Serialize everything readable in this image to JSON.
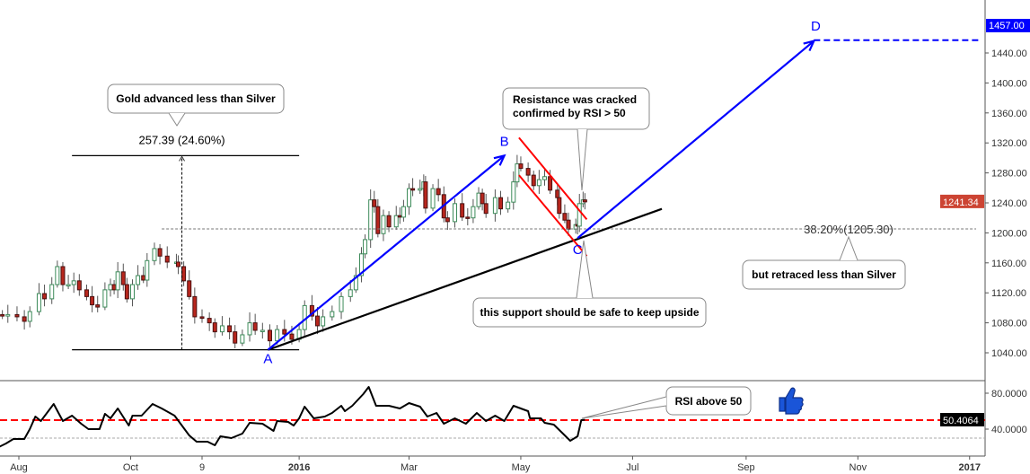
{
  "chart_data": [
    {
      "type": "candlestick",
      "title": "",
      "price_axis": {
        "ticks": [
          1040,
          1080,
          1120,
          1160,
          1200,
          1240,
          1280,
          1320,
          1360,
          1400,
          1440
        ],
        "tick_labels": [
          "1040.00",
          "1080.00",
          "1120.00",
          "1160.00",
          "1200.00",
          "1240.00",
          "1280.00",
          "1320.00",
          "1360.00",
          "1400.00",
          "1440.00"
        ],
        "range": [
          1008,
          1476
        ]
      },
      "time_axis": {
        "labels": [
          "Aug",
          "Oct",
          "9",
          "2016",
          "Mar",
          "May",
          "Jul",
          "Sep",
          "Nov",
          "2017"
        ],
        "dates": [
          "2015-08-01",
          "2015-10-01",
          "2015-11-09",
          "2016-01-01",
          "2016-03-01",
          "2016-05-01",
          "2016-07-01",
          "2016-09-01",
          "2016-11-01",
          "2017-01-01"
        ],
        "bold": [
          "2016",
          "2017"
        ]
      },
      "colors": {
        "up": "#3d8b5a",
        "down": "#b8261d",
        "wave": "#0000ff",
        "channel": "#ff0000",
        "trend": "#000000",
        "last_price": "#cc4433",
        "target": "#0000ff"
      },
      "last_price_label": "1241.34",
      "target_label": "1457.00",
      "target_price": 1457,
      "closes": [
        [
          "2015-07-23",
          1089
        ],
        [
          "2015-07-26",
          1091
        ],
        [
          "2015-07-31",
          1088
        ],
        [
          "2015-08-04",
          1082
        ],
        [
          "2015-08-07",
          1095
        ],
        [
          "2015-08-12",
          1119
        ],
        [
          "2015-08-15",
          1112
        ],
        [
          "2015-08-19",
          1131
        ],
        [
          "2015-08-22",
          1155
        ],
        [
          "2015-08-25",
          1131
        ],
        [
          "2015-08-28",
          1131
        ],
        [
          "2015-08-31",
          1136
        ],
        [
          "2015-09-03",
          1124
        ],
        [
          "2015-09-07",
          1115
        ],
        [
          "2015-09-10",
          1104
        ],
        [
          "2015-09-13",
          1101
        ],
        [
          "2015-09-17",
          1124
        ],
        [
          "2015-09-20",
          1131
        ],
        [
          "2015-09-22",
          1124
        ],
        [
          "2015-09-24",
          1148
        ],
        [
          "2015-09-27",
          1131
        ],
        [
          "2015-09-29",
          1112
        ],
        [
          "2015-10-02",
          1131
        ],
        [
          "2015-10-05",
          1143
        ],
        [
          "2015-10-08",
          1137
        ],
        [
          "2015-10-10",
          1163
        ],
        [
          "2015-10-14",
          1179
        ],
        [
          "2015-10-17",
          1169
        ],
        [
          "2015-10-21",
          1161
        ],
        [
          "2015-10-26",
          1161
        ],
        [
          "2015-10-27",
          1155
        ],
        [
          "2015-10-30",
          1136
        ],
        [
          "2015-11-02",
          1115
        ],
        [
          "2015-11-05",
          1088
        ],
        [
          "2015-11-09",
          1086
        ],
        [
          "2015-11-13",
          1080
        ],
        [
          "2015-11-16",
          1068
        ],
        [
          "2015-11-20",
          1076
        ],
        [
          "2015-11-24",
          1068
        ],
        [
          "2015-11-27",
          1053
        ],
        [
          "2015-12-01",
          1064
        ],
        [
          "2015-12-05",
          1080
        ],
        [
          "2015-12-08",
          1070
        ],
        [
          "2015-12-12",
          1070
        ],
        [
          "2015-12-16",
          1056
        ],
        [
          "2015-12-20",
          1071
        ],
        [
          "2015-12-24",
          1065
        ],
        [
          "2015-12-28",
          1058
        ],
        [
          "2016-01-01",
          1071
        ],
        [
          "2016-01-04",
          1103
        ],
        [
          "2016-01-08",
          1089
        ],
        [
          "2016-01-11",
          1076
        ],
        [
          "2016-01-14",
          1088
        ],
        [
          "2016-01-19",
          1095
        ],
        [
          "2016-01-24",
          1115
        ],
        [
          "2016-01-29",
          1124
        ],
        [
          "2016-02-01",
          1143
        ],
        [
          "2016-02-04",
          1172
        ],
        [
          "2016-02-06",
          1191
        ],
        [
          "2016-02-09",
          1244
        ],
        [
          "2016-02-11",
          1235
        ],
        [
          "2016-02-13",
          1199
        ],
        [
          "2016-02-16",
          1223
        ],
        [
          "2016-02-19",
          1208
        ],
        [
          "2016-02-23",
          1223
        ],
        [
          "2016-02-25",
          1221
        ],
        [
          "2016-02-27",
          1235
        ],
        [
          "2016-03-01",
          1259
        ],
        [
          "2016-03-03",
          1257
        ],
        [
          "2016-03-07",
          1259
        ],
        [
          "2016-03-09",
          1268
        ],
        [
          "2016-03-10",
          1233
        ],
        [
          "2016-03-14",
          1259
        ],
        [
          "2016-03-17",
          1251
        ],
        [
          "2016-03-20",
          1220
        ],
        [
          "2016-03-22",
          1215
        ],
        [
          "2016-03-26",
          1239
        ],
        [
          "2016-03-30",
          1221
        ],
        [
          "2016-04-02",
          1220
        ],
        [
          "2016-04-05",
          1235
        ],
        [
          "2016-04-08",
          1253
        ],
        [
          "2016-04-10",
          1239
        ],
        [
          "2016-04-12",
          1226
        ],
        [
          "2016-04-17",
          1247
        ],
        [
          "2016-04-20",
          1232
        ],
        [
          "2016-04-24",
          1241
        ],
        [
          "2016-04-27",
          1268
        ],
        [
          "2016-04-29",
          1292
        ],
        [
          "2016-05-01",
          1286
        ],
        [
          "2016-05-05",
          1277
        ],
        [
          "2016-05-08",
          1263
        ],
        [
          "2016-05-11",
          1271
        ],
        [
          "2016-05-14",
          1275
        ],
        [
          "2016-05-17",
          1257
        ],
        [
          "2016-05-21",
          1247
        ],
        [
          "2016-05-22",
          1226
        ],
        [
          "2016-05-25",
          1217
        ],
        [
          "2016-05-27",
          1205
        ],
        [
          "2016-05-31",
          1211
        ],
        [
          "2016-06-01",
          1209
        ],
        [
          "2016-06-02",
          1239
        ],
        [
          "2016-06-04",
          1244
        ],
        [
          "2016-06-05",
          1241.34
        ]
      ],
      "annotations": {
        "wave_labels": [
          {
            "text": "A",
            "date": "2015-12-15",
            "price": 1032
          },
          {
            "text": "B",
            "date": "2016-04-22",
            "price": 1322
          },
          {
            "text": "C",
            "date": "2016-06-01",
            "price": 1178
          },
          {
            "text": "D",
            "date": "2016-10-09",
            "price": 1476
          }
        ],
        "wave_lines": [
          {
            "from": [
              "2015-12-15",
              1044
            ],
            "to": [
              "2016-04-22",
              1303
            ],
            "arrow": true
          },
          {
            "from": [
              "2016-06-01",
              1193
            ],
            "to": [
              "2016-10-08",
              1456
            ],
            "arrow": true
          }
        ],
        "target_line": {
          "from": "2016-10-08",
          "price": 1457
        },
        "trendline": {
          "from": [
            "2015-12-15",
            1044
          ],
          "to": [
            "2016-07-17",
            1232
          ]
        },
        "channel": [
          {
            "from": [
              "2016-04-30",
              1327
            ],
            "to": [
              "2016-06-06",
              1218
            ]
          },
          {
            "from": [
              "2016-04-30",
              1277
            ],
            "to": [
              "2016-06-06",
              1169
            ]
          }
        ],
        "measure": {
          "high": 1303,
          "low": 1044,
          "label": "257.39 (24.60%)",
          "from": "2015-08-30",
          "to": "2016-01-01",
          "at": "2015-10-29"
        },
        "fib": {
          "price": 1205.3,
          "label": "38.20%(1205.30)",
          "from": "2015-10-18"
        },
        "callouts": [
          {
            "text": [
              "Gold advanced less than Silver"
            ]
          },
          {
            "text": [
              "Resistance was cracked",
              "confirmed by RSI > 50"
            ]
          },
          {
            "text": [
              "but retraced less than Silver"
            ]
          },
          {
            "text": [
              "this support should be safe to keep upside"
            ]
          },
          {
            "text": [
              "RSI above 50"
            ]
          }
        ]
      }
    },
    {
      "type": "line",
      "title": "",
      "indicator": "RSI",
      "axis": {
        "ticks": [
          80,
          40
        ],
        "tick_labels": [
          "80.0000",
          "40.0000"
        ]
      },
      "level_line": 50,
      "lower_guide": 30,
      "last_value_label": "50.4064",
      "colors": {
        "line": "#000000",
        "level": "#ff0000",
        "thumbs_up": "#1a55d8"
      },
      "icon": "thumbs-up-icon",
      "values": [
        [
          "2015-07-21",
          20
        ],
        [
          "2015-07-25",
          24
        ],
        [
          "2015-07-29",
          29
        ],
        [
          "2015-08-04",
          29
        ],
        [
          "2015-08-07",
          40
        ],
        [
          "2015-08-10",
          54
        ],
        [
          "2015-08-13",
          49
        ],
        [
          "2015-08-20",
          68
        ],
        [
          "2015-08-25",
          49
        ],
        [
          "2015-08-30",
          55
        ],
        [
          "2015-09-04",
          46
        ],
        [
          "2015-09-08",
          40
        ],
        [
          "2015-09-14",
          40
        ],
        [
          "2015-09-17",
          57
        ],
        [
          "2015-09-20",
          52
        ],
        [
          "2015-09-24",
          63
        ],
        [
          "2015-09-30",
          44
        ],
        [
          "2015-10-02",
          55
        ],
        [
          "2015-10-07",
          55
        ],
        [
          "2015-10-13",
          68
        ],
        [
          "2015-10-18",
          63
        ],
        [
          "2015-10-25",
          55
        ],
        [
          "2015-11-02",
          33
        ],
        [
          "2015-11-06",
          26
        ],
        [
          "2015-11-12",
          26
        ],
        [
          "2015-11-16",
          22
        ],
        [
          "2015-11-19",
          32
        ],
        [
          "2015-11-25",
          30
        ],
        [
          "2015-12-01",
          35
        ],
        [
          "2015-12-05",
          47
        ],
        [
          "2015-12-12",
          46
        ],
        [
          "2015-12-18",
          38
        ],
        [
          "2015-12-20",
          49
        ],
        [
          "2015-12-26",
          48
        ],
        [
          "2015-12-29",
          44
        ],
        [
          "2016-01-01",
          52
        ],
        [
          "2016-01-04",
          65
        ],
        [
          "2016-01-09",
          52
        ],
        [
          "2016-01-15",
          54
        ],
        [
          "2016-01-19",
          58
        ],
        [
          "2016-01-24",
          66
        ],
        [
          "2016-01-26",
          60
        ],
        [
          "2016-01-30",
          66
        ],
        [
          "2016-02-05",
          79
        ],
        [
          "2016-02-08",
          87
        ],
        [
          "2016-02-12",
          66
        ],
        [
          "2016-02-19",
          66
        ],
        [
          "2016-02-25",
          63
        ],
        [
          "2016-03-01",
          69
        ],
        [
          "2016-03-07",
          65
        ],
        [
          "2016-03-11",
          54
        ],
        [
          "2016-03-16",
          58
        ],
        [
          "2016-03-20",
          46
        ],
        [
          "2016-03-26",
          52
        ],
        [
          "2016-04-01",
          46
        ],
        [
          "2016-04-07",
          58
        ],
        [
          "2016-04-12",
          49
        ],
        [
          "2016-04-17",
          55
        ],
        [
          "2016-04-22",
          49
        ],
        [
          "2016-04-27",
          66
        ],
        [
          "2016-05-05",
          60
        ],
        [
          "2016-05-06",
          52
        ],
        [
          "2016-05-12",
          52
        ],
        [
          "2016-05-14",
          47
        ],
        [
          "2016-05-19",
          45
        ],
        [
          "2016-05-24",
          35
        ],
        [
          "2016-05-28",
          27
        ],
        [
          "2016-06-01",
          32
        ],
        [
          "2016-06-03",
          50
        ],
        [
          "2016-06-05",
          50.41
        ]
      ]
    }
  ]
}
